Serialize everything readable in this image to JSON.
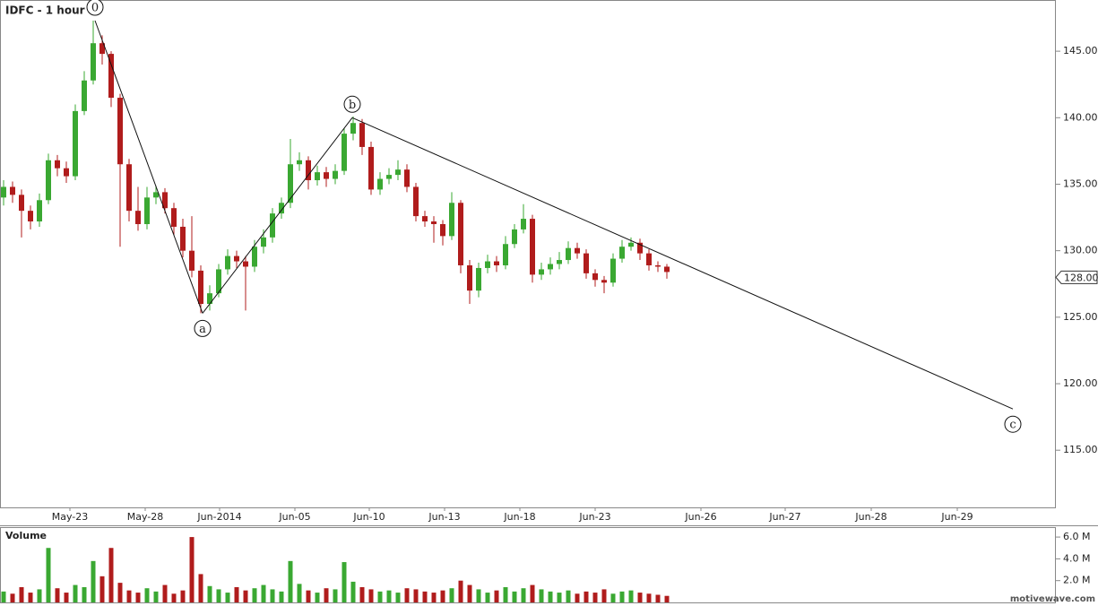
{
  "chart_data": {
    "type": "candlestick",
    "title": "IDFC - 1 hour",
    "volume_title": "Volume",
    "watermark": "motivewave.com",
    "up_color": "#3aa832",
    "down_color": "#b01c1c",
    "xlim": [
      0,
      294.5
    ],
    "xticks": [
      {
        "value": 19.5,
        "label": "May-23"
      },
      {
        "value": 40.5,
        "label": "May-28"
      },
      {
        "value": 61.25,
        "label": "Jun-2014"
      },
      {
        "value": 82.25,
        "label": "Jun-05"
      },
      {
        "value": 103,
        "label": "Jun-10"
      },
      {
        "value": 124,
        "label": "Jun-13"
      },
      {
        "value": 145,
        "label": "Jun-18"
      },
      {
        "value": 166,
        "label": "Jun-23"
      },
      {
        "value": 195.5,
        "label": "Jun-26"
      },
      {
        "value": 219,
        "label": "Jun-27"
      },
      {
        "value": 243,
        "label": "Jun-28"
      },
      {
        "value": 267,
        "label": "Jun-29"
      }
    ],
    "ylim": [
      110.7,
      148.85
    ],
    "yticks": [
      {
        "value": 115,
        "label": "115.00"
      },
      {
        "value": 120,
        "label": "120.00"
      },
      {
        "value": 125,
        "label": "125.00"
      },
      {
        "value": 130,
        "label": "130.00"
      },
      {
        "value": 135,
        "label": "135.00"
      },
      {
        "value": 140,
        "label": "140.00"
      },
      {
        "value": 145,
        "label": "145.00"
      }
    ],
    "last_price": {
      "value": 128,
      "label": "128.00"
    },
    "volume_ylim": [
      0,
      6.83
    ],
    "volume_yticks": [
      {
        "value": 2,
        "label": "2.0 M"
      },
      {
        "value": 4,
        "label": "4.0 M"
      },
      {
        "value": 6,
        "label": "6.0 M"
      }
    ],
    "x": [
      1,
      3.5,
      6,
      8.5,
      11,
      13.5,
      16,
      18.5,
      21,
      23.5,
      26,
      28.5,
      31,
      33.5,
      36,
      38.5,
      41,
      43.5,
      46,
      48.5,
      51,
      53.5,
      56,
      58.5,
      61,
      63.5,
      66,
      68.5,
      71,
      73.5,
      76,
      78.5,
      81,
      83.5,
      86,
      88.5,
      91,
      93.5,
      96,
      98.5,
      101,
      103.5,
      106,
      108.5,
      111,
      113.5,
      116,
      118.5,
      121,
      123.5,
      126,
      128.5,
      131,
      133.5,
      136,
      138.5,
      141,
      143.5,
      146,
      148.5,
      151,
      153.5,
      156,
      158.5,
      161,
      163.5,
      166,
      168.5,
      171,
      173.5,
      176,
      178.5,
      181,
      183.5,
      186
    ],
    "open": [
      134.0,
      134.8,
      134.2,
      133.0,
      132.2,
      133.8,
      136.8,
      136.2,
      135.6,
      140.5,
      142.8,
      145.6,
      144.8,
      141.5,
      136.5,
      133.0,
      132.0,
      134.0,
      134.4,
      133.2,
      131.8,
      130.0,
      128.5,
      126.0,
      126.8,
      128.6,
      129.6,
      129.2,
      128.8,
      130.3,
      131.0,
      132.8,
      133.6,
      136.5,
      136.8,
      135.3,
      135.9,
      135.4,
      136.0,
      138.8,
      139.6,
      137.8,
      134.6,
      135.4,
      135.7,
      136.1,
      134.8,
      132.6,
      132.2,
      132.0,
      131.1,
      133.6,
      128.9,
      127.0,
      128.7,
      129.2,
      128.9,
      130.5,
      131.6,
      132.4,
      128.2,
      128.6,
      129.0,
      129.3,
      130.2,
      129.8,
      128.3,
      127.8,
      127.6,
      129.4,
      130.3,
      130.6,
      129.8,
      128.9,
      128.8
    ],
    "high": [
      135.3,
      135.2,
      134.6,
      133.4,
      134.3,
      137.3,
      137.2,
      136.7,
      141.0,
      143.5,
      147.3,
      146.2,
      145.0,
      141.8,
      136.9,
      134.8,
      134.8,
      134.9,
      134.7,
      133.6,
      132.4,
      132.6,
      128.9,
      127.4,
      129.0,
      130.1,
      130.0,
      129.6,
      130.8,
      131.6,
      133.2,
      134.0,
      138.4,
      137.4,
      137.1,
      136.4,
      136.3,
      136.5,
      139.2,
      140.1,
      139.9,
      138.2,
      135.9,
      136.2,
      136.8,
      136.5,
      135.1,
      133.0,
      132.6,
      132.3,
      134.4,
      133.8,
      129.3,
      129.1,
      129.7,
      129.6,
      131.1,
      132.0,
      133.5,
      132.7,
      129.1,
      129.5,
      129.9,
      130.7,
      130.6,
      130.1,
      128.6,
      128.1,
      129.8,
      130.8,
      131.0,
      130.9,
      130.1,
      129.2,
      129.0
    ],
    "low": [
      133.4,
      133.6,
      131.0,
      131.6,
      131.8,
      133.5,
      135.6,
      135.1,
      135.3,
      140.2,
      142.5,
      144.0,
      140.8,
      130.3,
      132.2,
      131.5,
      131.6,
      133.5,
      132.8,
      131.2,
      129.5,
      128.0,
      125.3,
      125.5,
      126.5,
      128.2,
      128.7,
      125.5,
      128.4,
      129.8,
      130.6,
      132.4,
      133.2,
      136.0,
      134.6,
      134.9,
      134.8,
      135.0,
      135.7,
      138.3,
      137.2,
      134.2,
      134.2,
      135.0,
      135.3,
      134.4,
      132.2,
      131.8,
      130.6,
      130.4,
      130.8,
      128.3,
      126.0,
      126.5,
      128.3,
      128.4,
      128.6,
      130.2,
      131.3,
      127.6,
      127.8,
      128.2,
      128.6,
      129.0,
      129.4,
      127.9,
      127.3,
      126.8,
      127.3,
      129.1,
      130.0,
      129.3,
      128.5,
      128.4,
      127.9
    ],
    "close": [
      134.8,
      134.2,
      133.0,
      132.2,
      133.8,
      136.8,
      136.2,
      135.6,
      140.5,
      142.8,
      145.6,
      144.8,
      141.5,
      136.5,
      133.0,
      132.0,
      134.0,
      134.4,
      133.2,
      131.8,
      130.0,
      128.5,
      126.0,
      126.8,
      128.6,
      129.6,
      129.2,
      128.8,
      130.3,
      131.0,
      132.8,
      133.6,
      136.5,
      136.8,
      135.3,
      135.9,
      135.4,
      136.0,
      138.8,
      139.6,
      137.8,
      134.6,
      135.4,
      135.7,
      136.1,
      134.8,
      132.6,
      132.2,
      132.0,
      131.1,
      133.6,
      128.9,
      127.0,
      128.7,
      129.2,
      128.9,
      130.5,
      131.6,
      132.4,
      128.2,
      128.6,
      129.0,
      129.3,
      130.2,
      129.8,
      128.3,
      127.8,
      127.6,
      129.4,
      130.3,
      130.6,
      129.8,
      128.9,
      128.8,
      128.4
    ],
    "volume": [
      1.0,
      0.8,
      1.4,
      0.9,
      1.2,
      5.0,
      1.3,
      0.9,
      1.6,
      1.4,
      3.8,
      2.4,
      5.0,
      1.8,
      1.1,
      0.9,
      1.3,
      1.0,
      1.6,
      0.8,
      1.1,
      6.0,
      2.6,
      1.5,
      1.2,
      0.9,
      1.4,
      1.1,
      1.3,
      1.6,
      1.2,
      1.0,
      3.8,
      1.7,
      1.1,
      0.9,
      1.3,
      1.2,
      3.7,
      1.9,
      1.4,
      1.2,
      1.0,
      1.1,
      0.9,
      1.3,
      1.2,
      1.0,
      0.9,
      1.1,
      1.3,
      2.0,
      1.6,
      1.2,
      0.9,
      1.1,
      1.4,
      1.0,
      1.3,
      1.6,
      1.2,
      1.0,
      0.9,
      1.1,
      0.8,
      1.0,
      0.9,
      1.2,
      0.8,
      1.0,
      1.1,
      0.9,
      0.8,
      0.7,
      0.6
    ],
    "waves": [
      {
        "label": "0",
        "x": 26.5,
        "y": 147.3
      },
      {
        "label": "a",
        "x": 56.5,
        "y": 125.3
      },
      {
        "label": "b",
        "x": 98.25,
        "y": 140.0
      },
      {
        "label": "c",
        "x": 282.5,
        "y": 118.1
      }
    ]
  }
}
